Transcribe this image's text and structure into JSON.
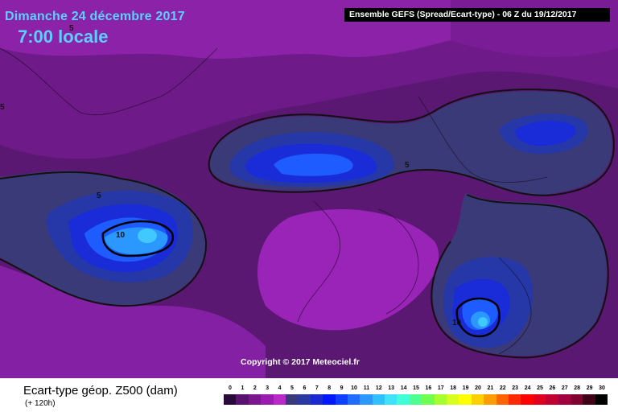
{
  "header": {
    "date": "Dimanche 24 décembre 2017",
    "time": "7:00 locale",
    "run_info": "Ensemble GEFS  (Spread/Ecart-type) - 06 Z du 19/12/2017"
  },
  "map": {
    "copyright": "Copyright © 2017 Meteociel.fr",
    "contour_labels": [
      "5",
      "5",
      "5",
      "10",
      "10",
      "5"
    ]
  },
  "footer": {
    "title": "Ecart-type géop. Z500 (dam)",
    "subtitle": "(+ 120h)"
  },
  "legend": {
    "ticks": [
      "0",
      "1",
      "2",
      "3",
      "4",
      "5",
      "6",
      "7",
      "8",
      "9",
      "10",
      "11",
      "12",
      "13",
      "14",
      "15",
      "16",
      "17",
      "18",
      "19",
      "20",
      "21",
      "22",
      "23",
      "24",
      "25",
      "26",
      "27",
      "28",
      "29",
      "30"
    ],
    "colors": [
      "#2a0a3a",
      "#5a1270",
      "#7a168e",
      "#9a1cae",
      "#b82ac8",
      "#3a3a7a",
      "#2a3aa0",
      "#1a2ad0",
      "#0018ff",
      "#1040ff",
      "#1f6cff",
      "#2a98ff",
      "#30c0ff",
      "#40e0ff",
      "#40ffd8",
      "#50ff90",
      "#70ff50",
      "#a8ff30",
      "#d8ff20",
      "#ffff00",
      "#ffd000",
      "#ff9c00",
      "#ff6400",
      "#ff2a00",
      "#ff0000",
      "#e00020",
      "#c00030",
      "#a00040",
      "#800030",
      "#400018",
      "#000000"
    ]
  }
}
